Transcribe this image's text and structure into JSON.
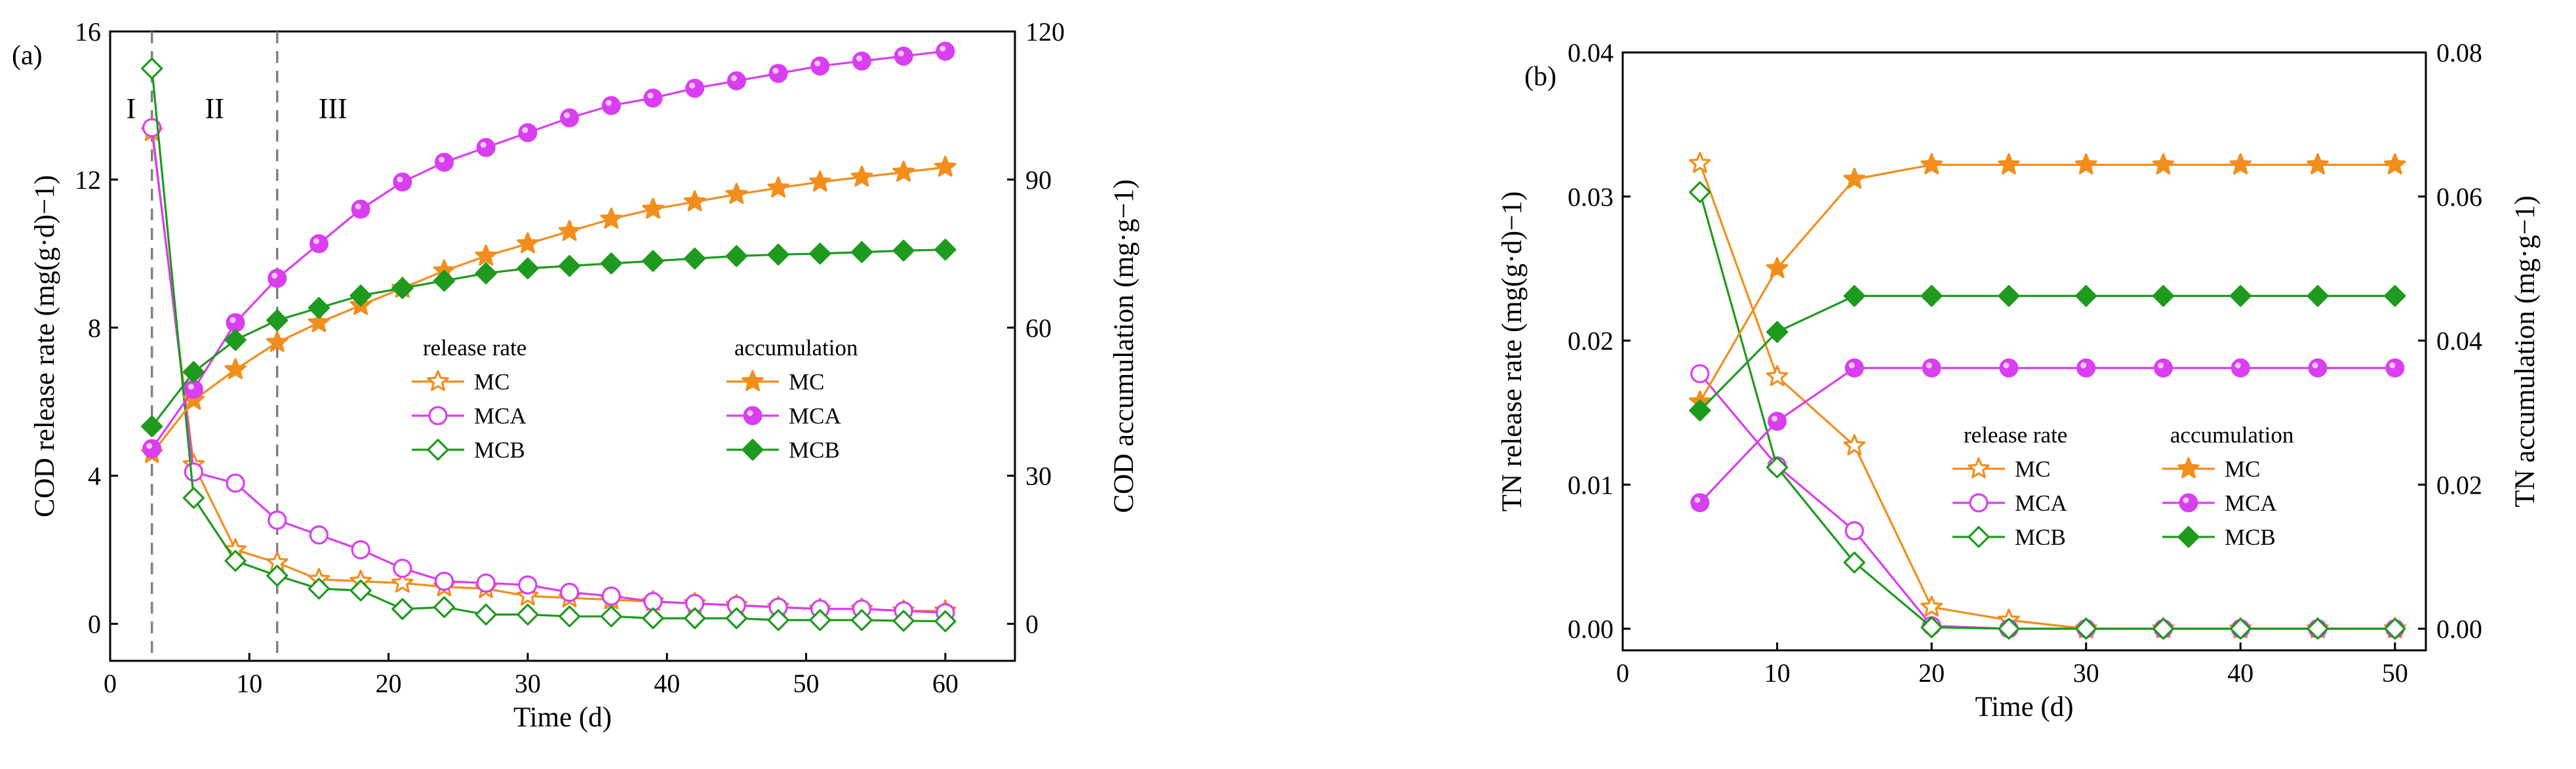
{
  "colors": {
    "MC": "#f28e1c",
    "MCA": "#d93ef0",
    "MCB": "#1e9a1e"
  },
  "chart_data": [
    {
      "type": "line",
      "panel_label": "(a)",
      "xlabel": "Time (d)",
      "ylabel": "COD release rate (mg(g·d)−1)",
      "y2label": "COD accumulation (mg·g−1)",
      "xlim": [
        0,
        65
      ],
      "ylim": [
        -1,
        16
      ],
      "y2lim": [
        -7.5,
        120
      ],
      "xticks": [
        0,
        10,
        20,
        30,
        40,
        50,
        60
      ],
      "yticks": [
        0,
        4,
        8,
        12,
        16
      ],
      "y2ticks": [
        0,
        30,
        60,
        90,
        120
      ],
      "regions": [
        {
          "label": "I",
          "x": 1.5
        },
        {
          "label": "II",
          "x": 7.5
        },
        {
          "label": "III",
          "x": 16
        }
      ],
      "vlines": [
        3,
        12
      ],
      "legend": {
        "placement": "center",
        "rate_title": "release rate",
        "acc_title": "accumulation"
      },
      "x": [
        3,
        6,
        9,
        12,
        15,
        18,
        21,
        24,
        27,
        30,
        33,
        36,
        39,
        42,
        45,
        48,
        51,
        54,
        57,
        60
      ],
      "series": [
        {
          "name": "MC",
          "kind": "rate",
          "marker": "star-open",
          "axis": "left",
          "values": [
            13.3,
            4.3,
            2.0,
            1.65,
            1.2,
            1.15,
            1.1,
            1.0,
            0.95,
            0.75,
            0.7,
            0.65,
            0.6,
            0.55,
            0.5,
            0.45,
            0.4,
            0.4,
            0.35,
            0.35
          ]
        },
        {
          "name": "MCA",
          "kind": "rate",
          "marker": "circle-open",
          "axis": "left",
          "values": [
            13.4,
            4.1,
            3.8,
            2.8,
            2.4,
            2.0,
            1.5,
            1.15,
            1.1,
            1.05,
            0.85,
            0.75,
            0.6,
            0.55,
            0.5,
            0.45,
            0.4,
            0.4,
            0.35,
            0.3
          ]
        },
        {
          "name": "MCB",
          "kind": "rate",
          "marker": "diamond-open",
          "axis": "left",
          "values": [
            15.0,
            3.4,
            1.7,
            1.3,
            0.95,
            0.9,
            0.4,
            0.45,
            0.25,
            0.25,
            0.2,
            0.2,
            0.15,
            0.15,
            0.15,
            0.1,
            0.1,
            0.1,
            0.08,
            0.07
          ]
        },
        {
          "name": "MC",
          "kind": "accumulation",
          "marker": "star-filled",
          "axis": "right",
          "values": [
            34.5,
            45.3,
            51.5,
            57.0,
            61.0,
            64.5,
            68.0,
            71.5,
            74.5,
            77.0,
            79.5,
            82.0,
            84.0,
            85.5,
            87.0,
            88.3,
            89.5,
            90.5,
            91.5,
            92.5
          ]
        },
        {
          "name": "MCA",
          "kind": "accumulation",
          "marker": "circle-filled",
          "axis": "right",
          "values": [
            35.5,
            47.5,
            61.0,
            70.0,
            77.0,
            84.0,
            89.5,
            93.5,
            96.5,
            99.5,
            102.5,
            105.0,
            106.5,
            108.5,
            110.0,
            111.5,
            113.0,
            114.0,
            115.0,
            116.0
          ]
        },
        {
          "name": "MCB",
          "kind": "accumulation",
          "marker": "diamond-filled",
          "axis": "right",
          "values": [
            40.0,
            51.0,
            57.5,
            61.5,
            64.0,
            66.5,
            68.0,
            69.5,
            71.0,
            72.0,
            72.5,
            73.0,
            73.5,
            74.0,
            74.5,
            74.8,
            75.0,
            75.3,
            75.6,
            75.8
          ]
        }
      ]
    },
    {
      "type": "line",
      "panel_label": "(b)",
      "xlabel": "Time (d)",
      "ylabel": "TN release rate (mg(g·d)−1)",
      "y2label": "TN accumulation (mg·g−1)",
      "xlim": [
        0,
        52
      ],
      "ylim": [
        -0.0015,
        0.04
      ],
      "y2lim": [
        -0.003,
        0.08
      ],
      "xticks": [
        0,
        10,
        20,
        30,
        40,
        50
      ],
      "yticks": [
        "0.00",
        "0.01",
        "0.02",
        "0.03",
        "0.04"
      ],
      "y2ticks": [
        "0.00",
        "0.02",
        "0.04",
        "0.06",
        "0.08"
      ],
      "legend": {
        "placement": "lower-right",
        "rate_title": "release rate",
        "acc_title": "accumulation"
      },
      "x": [
        5,
        10,
        15,
        20,
        25,
        30,
        35,
        40,
        45,
        50
      ],
      "series": [
        {
          "name": "MC",
          "kind": "rate",
          "marker": "star-open",
          "axis": "left",
          "values": [
            0.0323,
            0.0175,
            0.0127,
            0.0015,
            0.0006,
            0.0,
            0.0,
            0.0,
            0.0,
            0.0
          ]
        },
        {
          "name": "MCA",
          "kind": "rate",
          "marker": "circle-open",
          "axis": "left",
          "values": [
            0.0177,
            0.0113,
            0.0068,
            0.0002,
            0.0,
            0.0,
            0.0,
            0.0,
            0.0,
            0.0
          ]
        },
        {
          "name": "MCB",
          "kind": "rate",
          "marker": "diamond-open",
          "axis": "left",
          "values": [
            0.0303,
            0.0112,
            0.0046,
            0.0001,
            0.0,
            0.0,
            0.0,
            0.0,
            0.0,
            0.0
          ]
        },
        {
          "name": "MC",
          "kind": "accumulation",
          "marker": "star-filled",
          "axis": "right",
          "values": [
            0.0315,
            0.05,
            0.0624,
            0.0644,
            0.0644,
            0.0644,
            0.0644,
            0.0644,
            0.0644,
            0.0644
          ]
        },
        {
          "name": "MCA",
          "kind": "accumulation",
          "marker": "circle-filled",
          "axis": "right",
          "values": [
            0.0175,
            0.0288,
            0.0362,
            0.0362,
            0.0362,
            0.0362,
            0.0362,
            0.0362,
            0.0362,
            0.0362
          ]
        },
        {
          "name": "MCB",
          "kind": "accumulation",
          "marker": "diamond-filled",
          "axis": "right",
          "values": [
            0.0303,
            0.0412,
            0.0462,
            0.0462,
            0.0462,
            0.0462,
            0.0462,
            0.0462,
            0.0462,
            0.0462
          ]
        }
      ]
    }
  ]
}
